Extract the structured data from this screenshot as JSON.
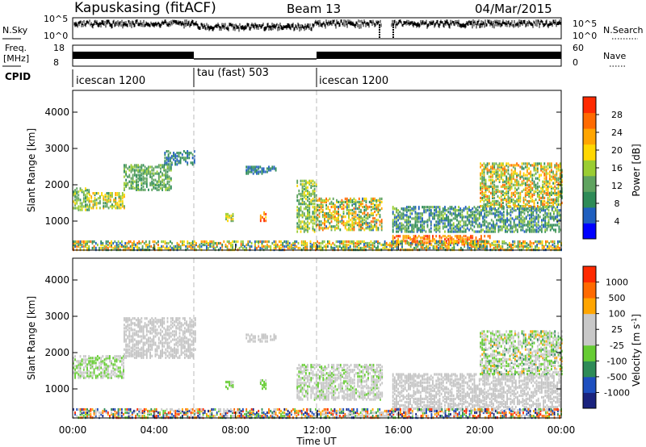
{
  "header": {
    "station": "Kapuskasing (fitACF)",
    "beam": "Beam 13",
    "date": "04/Mar/2015"
  },
  "top_panels": {
    "nsky_label": "N.Sky",
    "nsky_ticks": [
      "10^5",
      "10^0"
    ],
    "nsearch_label": "N.Search",
    "nsearch_ticks": [
      "10^5",
      "10^0"
    ],
    "freq_label": "Freq.",
    "freq_unit": "[MHz]",
    "freq_ticks": [
      "18",
      "8"
    ],
    "nave_label": "Nave",
    "nave_ticks": [
      "60",
      "0"
    ],
    "cpid_label": "CPID",
    "cpid_segments": [
      {
        "label": "icescan 1200",
        "start": 0.0,
        "end": 6.0
      },
      {
        "label": "tau (fast) 503",
        "start": 6.0,
        "end": 12.0
      },
      {
        "label": "icescan 1200",
        "start": 12.0,
        "end": 24.0
      }
    ]
  },
  "colors": {
    "power": [
      "#0000ff",
      "#1f5fbf",
      "#2e8b57",
      "#5fa35f",
      "#9acd32",
      "#ffd700",
      "#ffa500",
      "#ff6a00",
      "#ff2a00"
    ],
    "velocity": [
      "#1a237e",
      "#1e4fbf",
      "#2e8b57",
      "#66cc33",
      "#c8c8c8",
      "#c8c8c8",
      "#ffa500",
      "#ff6a00",
      "#ff2a00"
    ],
    "gray": "#c4c4c4"
  },
  "chart_data": [
    {
      "type": "heatmap",
      "title": "",
      "xlabel": "",
      "ylabel": "Slant Range [km]",
      "xlim": [
        0,
        24
      ],
      "ylim": [
        200,
        4600
      ],
      "y_ticks": [
        1000,
        2000,
        3000,
        4000
      ],
      "colorbar": {
        "label": "Power [dB]",
        "ticks": [
          "28",
          "24",
          "20",
          "16",
          "12",
          "8",
          "4"
        ],
        "range": [
          0,
          32
        ]
      },
      "scatter_regions": [
        {
          "t_start": 0.0,
          "t_end": 0.8,
          "r_start": 1300,
          "r_end": 1900,
          "value_range": [
            8,
            20
          ]
        },
        {
          "t_start": 0.8,
          "t_end": 2.5,
          "r_start": 1350,
          "r_end": 1800,
          "value_range": [
            10,
            24
          ]
        },
        {
          "t_start": 2.5,
          "t_end": 4.8,
          "r_start": 1850,
          "r_end": 2550,
          "value_range": [
            8,
            16
          ]
        },
        {
          "t_start": 4.5,
          "t_end": 6.0,
          "r_start": 2550,
          "r_end": 2950,
          "value_range": [
            4,
            12
          ]
        },
        {
          "t_start": 8.5,
          "t_end": 10.0,
          "r_start": 2300,
          "r_end": 2500,
          "value_range": [
            4,
            10
          ]
        },
        {
          "t_start": 7.5,
          "t_end": 7.9,
          "r_start": 1000,
          "r_end": 1200,
          "value_range": [
            12,
            22
          ]
        },
        {
          "t_start": 9.2,
          "t_end": 9.5,
          "r_start": 1000,
          "r_end": 1250,
          "value_range": [
            20,
            30
          ]
        },
        {
          "t_start": 11.0,
          "t_end": 12.0,
          "r_start": 700,
          "r_end": 2100,
          "value_range": [
            8,
            20
          ]
        },
        {
          "t_start": 12.0,
          "t_end": 15.2,
          "r_start": 750,
          "r_end": 1650,
          "value_range": [
            6,
            28
          ]
        },
        {
          "t_start": 15.7,
          "t_end": 24.0,
          "r_start": 700,
          "r_end": 1400,
          "value_range": [
            4,
            16
          ]
        },
        {
          "t_start": 15.7,
          "t_end": 20.5,
          "r_start": 350,
          "r_end": 600,
          "value_range": [
            22,
            30
          ]
        },
        {
          "t_start": 20.0,
          "t_end": 24.0,
          "r_start": 1400,
          "r_end": 2600,
          "value_range": [
            8,
            28
          ]
        },
        {
          "t_start": 0.0,
          "t_end": 24.0,
          "r_start": 200,
          "r_end": 450,
          "value_range": [
            4,
            28
          ]
        }
      ]
    },
    {
      "type": "heatmap",
      "title": "",
      "xlabel": "Time UT",
      "ylabel": "Slant Range [km]",
      "xlim": [
        0,
        24
      ],
      "ylim": [
        200,
        4600
      ],
      "x_ticks": [
        "00:00",
        "04:00",
        "08:00",
        "12:00",
        "16:00",
        "20:00",
        "00:00"
      ],
      "y_ticks": [
        1000,
        2000,
        3000,
        4000
      ],
      "colorbar": {
        "label": "Velocity [m s^-1]",
        "ticks": [
          "1000",
          "500",
          "100",
          "25",
          "-25",
          "-100",
          "-500",
          "-1000"
        ],
        "range": [
          -1000,
          1000
        ]
      },
      "scatter_regions": [
        {
          "t_start": 0.0,
          "t_end": 2.5,
          "r_start": 1300,
          "r_end": 1900,
          "value_range": [
            -300,
            150
          ]
        },
        {
          "t_start": 2.5,
          "t_end": 6.0,
          "r_start": 1850,
          "r_end": 2950,
          "value_range": [
            -25,
            25
          ]
        },
        {
          "t_start": 8.5,
          "t_end": 10.0,
          "r_start": 2300,
          "r_end": 2500,
          "value_range": [
            -25,
            25
          ]
        },
        {
          "t_start": 7.5,
          "t_end": 7.9,
          "r_start": 1000,
          "r_end": 1200,
          "value_range": [
            -200,
            -100
          ]
        },
        {
          "t_start": 9.2,
          "t_end": 9.5,
          "r_start": 1000,
          "r_end": 1250,
          "value_range": [
            -200,
            -100
          ]
        },
        {
          "t_start": 11.0,
          "t_end": 15.2,
          "r_start": 700,
          "r_end": 1650,
          "value_range": [
            -150,
            50
          ]
        },
        {
          "t_start": 15.7,
          "t_end": 24.0,
          "r_start": 400,
          "r_end": 1400,
          "value_range": [
            -25,
            25
          ]
        },
        {
          "t_start": 20.0,
          "t_end": 24.0,
          "r_start": 1400,
          "r_end": 2600,
          "value_range": [
            -400,
            400
          ]
        },
        {
          "t_start": 0.0,
          "t_end": 24.0,
          "r_start": 200,
          "r_end": 450,
          "value_range": [
            -1000,
            1000
          ]
        }
      ]
    }
  ]
}
